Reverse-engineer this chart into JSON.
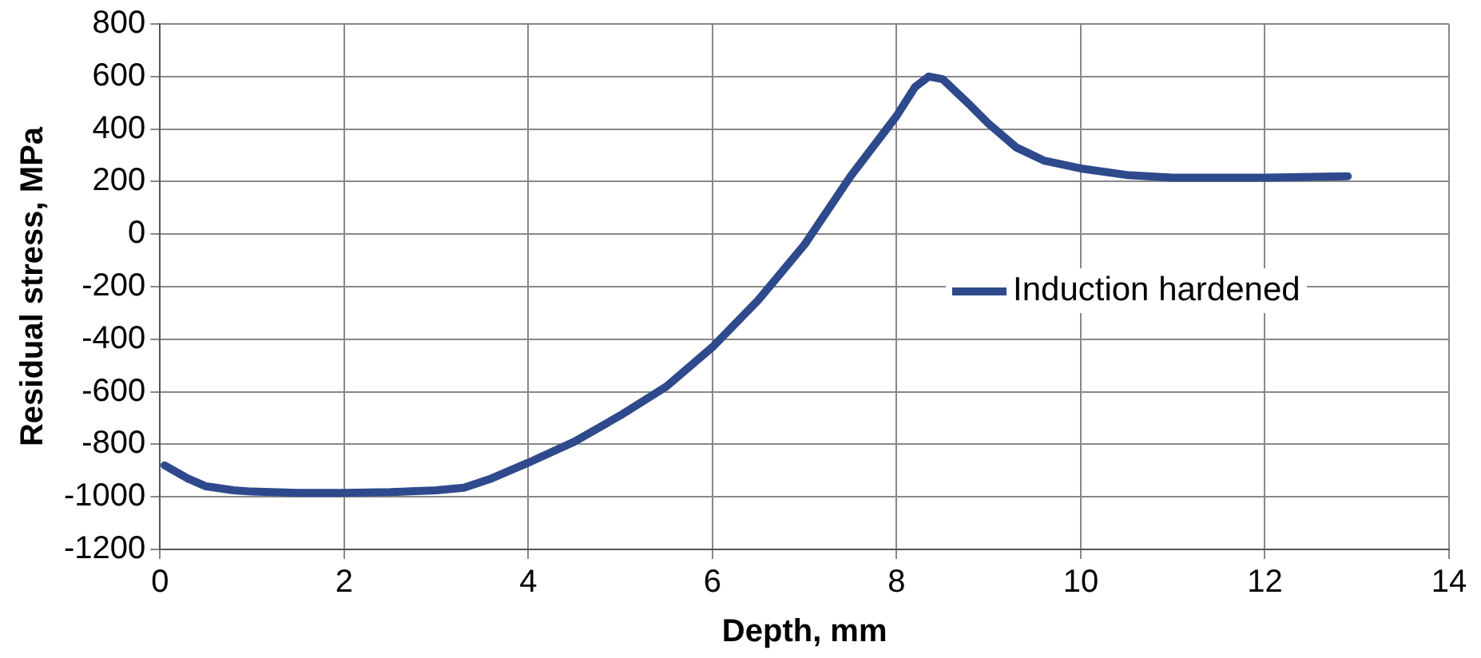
{
  "chart_data": {
    "type": "line",
    "xlabel": "Depth, mm",
    "ylabel": "Residual stress, MPa",
    "x": [
      0.05,
      0.3,
      0.5,
      0.8,
      1,
      1.5,
      2,
      2.5,
      3,
      3.3,
      3.6,
      4,
      4.5,
      5,
      5.5,
      6,
      6.5,
      7,
      7.5,
      8,
      8.2,
      8.35,
      8.5,
      8.8,
      9,
      9.3,
      9.6,
      10,
      10.5,
      11,
      11.5,
      12,
      12.5,
      12.9
    ],
    "series": [
      {
        "name": "Induction hardened",
        "color": "#2e4a8c",
        "values": [
          -880,
          -930,
          -960,
          -975,
          -980,
          -985,
          -985,
          -982,
          -975,
          -965,
          -930,
          -870,
          -790,
          -690,
          -580,
          -430,
          -250,
          -40,
          220,
          450,
          560,
          600,
          590,
          490,
          420,
          330,
          280,
          250,
          225,
          215,
          215,
          215,
          218,
          220
        ]
      }
    ],
    "xlim": [
      0,
      14
    ],
    "xticks": [
      0,
      2,
      4,
      6,
      8,
      10,
      12,
      14
    ],
    "ylim": [
      -1200,
      800
    ],
    "yticks": [
      -1200,
      -1000,
      -800,
      -600,
      -400,
      -200,
      0,
      200,
      400,
      600,
      800
    ],
    "grid": true,
    "legend": "right",
    "marker": "none",
    "line_style": "solid"
  }
}
